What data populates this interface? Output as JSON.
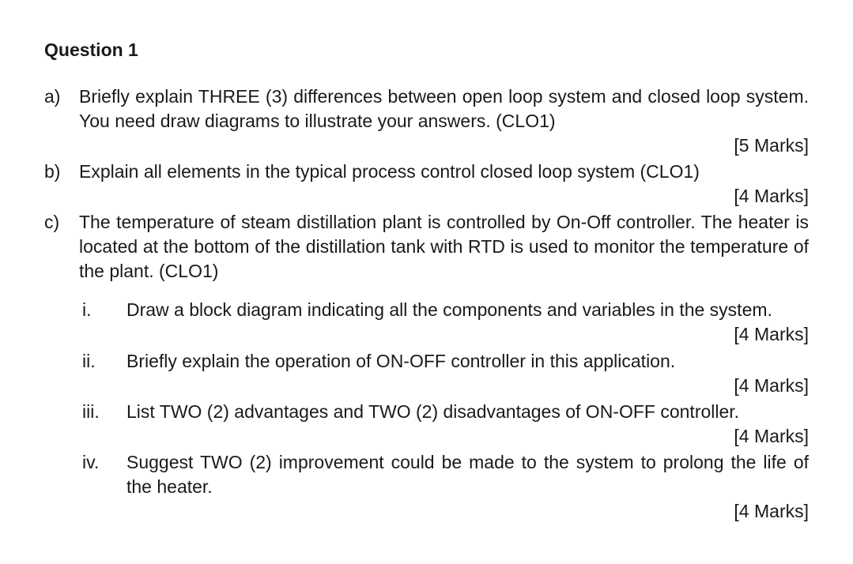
{
  "title": "Question 1",
  "parts": {
    "a": {
      "label": "a)",
      "text": "Briefly explain THREE (3) differences between open loop system and closed loop system. You need draw diagrams to illustrate your answers. (CLO1)",
      "marks": "[5 Marks]"
    },
    "b": {
      "label": "b)",
      "text": "Explain all elements in the typical process control closed loop system  (CLO1)",
      "marks": "[4 Marks]"
    },
    "c": {
      "label": "c)",
      "text": "The temperature of steam distillation plant is controlled by On-Off controller. The heater is located at the bottom of the distillation tank with RTD is used to monitor the temperature of the plant. (CLO1)",
      "subs": {
        "i": {
          "label": "i.",
          "text": "Draw a block diagram indicating all the components and variables in the system.",
          "marks": "[4 Marks]"
        },
        "ii": {
          "label": "ii.",
          "text": "Briefly explain the operation of ON-OFF controller in this application.",
          "marks": "[4 Marks]"
        },
        "iii": {
          "label": "iii.",
          "text": "List TWO (2) advantages and TWO (2) disadvantages of ON-OFF controller.",
          "marks": "[4 Marks]"
        },
        "iv": {
          "label": "iv.",
          "text": "Suggest TWO (2) improvement could be made to the system to prolong the life of the heater.",
          "marks": "[4 Marks]"
        }
      }
    }
  }
}
